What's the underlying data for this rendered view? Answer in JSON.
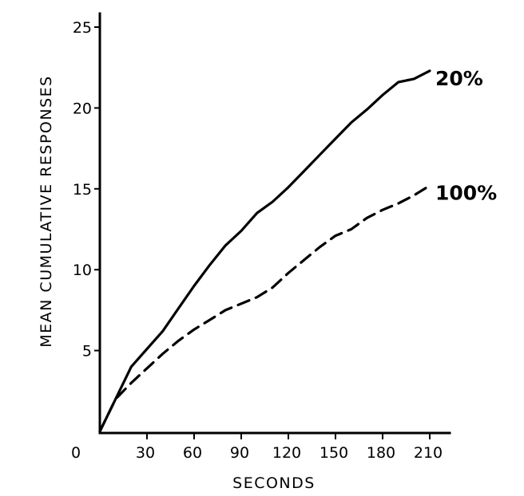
{
  "chart_data": {
    "type": "line",
    "title": "",
    "xlabel": "SECONDS",
    "ylabel": "MEAN CUMULATIVE RESPONSES",
    "xlim": [
      0,
      225
    ],
    "ylim": [
      0,
      25
    ],
    "origin_label": "0",
    "x_ticks": [
      30,
      60,
      90,
      120,
      150,
      180,
      210
    ],
    "y_ticks": [
      5,
      10,
      15,
      20,
      25
    ],
    "grid": false,
    "legend": "none",
    "series": [
      {
        "name": "20%",
        "style": "solid",
        "x": [
          0,
          10,
          20,
          30,
          40,
          50,
          60,
          70,
          80,
          90,
          100,
          110,
          120,
          130,
          140,
          150,
          160,
          170,
          180,
          190,
          200,
          210
        ],
        "y": [
          0,
          2,
          4,
          5.1,
          6.2,
          7.6,
          9,
          10.3,
          11.5,
          12.4,
          13.5,
          14.2,
          15.1,
          16.1,
          17.1,
          18.1,
          19.1,
          19.9,
          20.8,
          21.6,
          21.8,
          22.3
        ]
      },
      {
        "name": "100%",
        "style": "dashed",
        "x": [
          0,
          10,
          20,
          30,
          40,
          50,
          60,
          70,
          80,
          90,
          100,
          110,
          120,
          130,
          140,
          150,
          160,
          170,
          180,
          190,
          200,
          210
        ],
        "y": [
          0,
          2,
          3,
          3.9,
          4.8,
          5.6,
          6.3,
          6.9,
          7.5,
          7.9,
          8.3,
          8.9,
          9.8,
          10.6,
          11.4,
          12.1,
          12.5,
          13.2,
          13.7,
          14.1,
          14.6,
          15.2
        ]
      }
    ]
  }
}
